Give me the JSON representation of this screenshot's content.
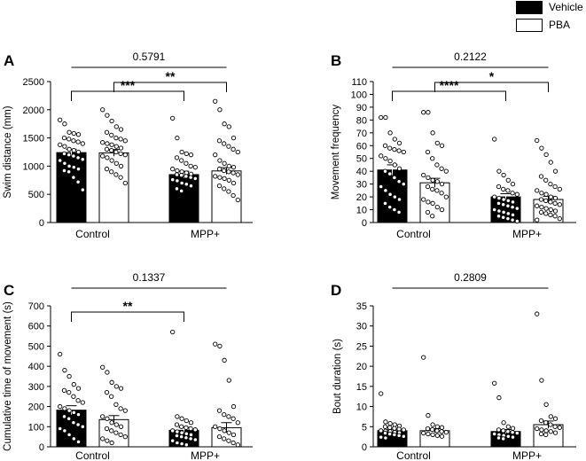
{
  "legend": {
    "items": [
      {
        "label": "Vehicle",
        "color": "#000000"
      },
      {
        "label": "PBA",
        "color": "#ffffff"
      }
    ]
  },
  "chart_data": [
    {
      "panel": "A",
      "type": "bar",
      "categories": [
        "Control",
        "MPP+"
      ],
      "series": [
        {
          "name": "Vehicle",
          "values": [
            1240,
            850
          ],
          "sem": [
            60,
            60
          ],
          "points": [
            [
              1820,
              1750,
              1600,
              1580,
              1560,
              1500,
              1480,
              1450,
              1430,
              1400,
              1380,
              1350,
              1300,
              1280,
              1250,
              1220,
              1200,
              1180,
              1150,
              1120,
              1100,
              1050,
              1000,
              980,
              950,
              920,
              900,
              800,
              720,
              580
            ],
            [
              1850,
              1500,
              1250,
              1220,
              1200,
              1150,
              1100,
              1050,
              1000,
              980,
              950,
              920,
              900,
              880,
              860,
              850,
              840,
              820,
              800,
              780,
              760,
              740,
              700,
              680,
              650,
              600,
              560
            ]
          ]
        },
        {
          "name": "PBA",
          "values": [
            1235,
            915
          ],
          "sem": [
            60,
            60
          ],
          "points": [
            [
              2000,
              1900,
              1800,
              1700,
              1650,
              1600,
              1550,
              1500,
              1480,
              1450,
              1420,
              1400,
              1380,
              1350,
              1320,
              1300,
              1280,
              1250,
              1220,
              1200,
              1180,
              1150,
              1100,
              1050,
              1000,
              950,
              900,
              850,
              800,
              700
            ],
            [
              2150,
              2000,
              1750,
              1700,
              1500,
              1450,
              1400,
              1350,
              1300,
              1250,
              1200,
              1100,
              1050,
              1000,
              980,
              950,
              920,
              900,
              880,
              850,
              820,
              800,
              780,
              750,
              700,
              650,
              600,
              550,
              480,
              400
            ]
          ]
        }
      ],
      "ylabel": "Swim distance (mm)",
      "ylim": [
        0,
        2500
      ],
      "yticks": [
        "0",
        "500",
        "1000",
        "1500",
        "2000",
        "2500"
      ],
      "annotations": [
        {
          "label": "0.5791",
          "from": "Control-Vehicle",
          "to": "MPP+-PBA",
          "style": "line"
        },
        {
          "label": "***",
          "from": "Control-Vehicle",
          "to": "MPP+-Vehicle",
          "style": "bracket"
        },
        {
          "label": "**",
          "from": "Control-PBA",
          "to": "MPP+-PBA",
          "style": "bracket"
        }
      ]
    },
    {
      "panel": "B",
      "type": "bar",
      "categories": [
        "Control",
        "MPP+"
      ],
      "series": [
        {
          "name": "Vehicle",
          "values": [
            41,
            20
          ],
          "sem": [
            4,
            2.5
          ],
          "points": [
            [
              82,
              82,
              70,
              65,
              62,
              60,
              58,
              57,
              56,
              55,
              52,
              50,
              48,
              45,
              42,
              40,
              38,
              35,
              32,
              30,
              28,
              25,
              22,
              20,
              18,
              15,
              12,
              10,
              8
            ],
            [
              65,
              40,
              37,
              33,
              30,
              28,
              26,
              25,
              23,
              22,
              20,
              19,
              18,
              17,
              16,
              15,
              14,
              13,
              12,
              11,
              10,
              9,
              8,
              7,
              6,
              5,
              4,
              3,
              2,
              1
            ]
          ]
        },
        {
          "name": "PBA",
          "values": [
            31,
            18
          ],
          "sem": [
            3.5,
            2.5
          ],
          "points": [
            [
              86,
              86,
              70,
              62,
              60,
              55,
              50,
              45,
              42,
              40,
              37,
              35,
              33,
              32,
              30,
              28,
              26,
              25,
              23,
              20,
              18,
              16,
              15,
              12,
              10,
              8,
              5
            ],
            [
              64,
              58,
              53,
              47,
              40,
              36,
              33,
              30,
              28,
              26,
              25,
              23,
              22,
              20,
              19,
              18,
              17,
              16,
              15,
              14,
              13,
              12,
              11,
              10,
              9,
              8,
              7,
              6,
              5,
              3,
              2
            ]
          ]
        }
      ],
      "ylabel": "Movement frequency",
      "ylim": [
        0,
        110
      ],
      "yticks": [
        "0",
        "10",
        "20",
        "30",
        "40",
        "50",
        "60",
        "70",
        "80",
        "90",
        "100",
        "110"
      ],
      "annotations": [
        {
          "label": "0.2122",
          "from": "Control-Vehicle",
          "to": "MPP+-PBA",
          "style": "line"
        },
        {
          "label": "****",
          "from": "Control-Vehicle",
          "to": "MPP+-Vehicle",
          "style": "bracket"
        },
        {
          "label": "*",
          "from": "Control-PBA",
          "to": "MPP+-PBA",
          "style": "bracket"
        }
      ]
    },
    {
      "panel": "C",
      "type": "bar",
      "categories": [
        "Control",
        "MPP+"
      ],
      "series": [
        {
          "name": "Vehicle",
          "values": [
            182,
            82
          ],
          "sem": [
            22,
            15
          ],
          "points": [
            [
              460,
              380,
              350,
              310,
              290,
              280,
              270,
              250,
              230,
              220,
              200,
              190,
              180,
              170,
              160,
              150,
              140,
              120,
              110,
              100,
              90,
              80,
              60,
              40,
              25
            ],
            [
              570,
              150,
              140,
              130,
              120,
              110,
              100,
              95,
              90,
              85,
              80,
              75,
              70,
              65,
              60,
              55,
              50,
              45,
              40,
              35,
              30,
              20,
              15,
              10
            ]
          ]
        },
        {
          "name": "PBA",
          "values": [
            135,
            95
          ],
          "sem": [
            20,
            25
          ],
          "points": [
            [
              395,
              370,
              320,
              300,
              290,
              270,
              250,
              210,
              190,
              180,
              150,
              140,
              120,
              110,
              100,
              90,
              80,
              70,
              60,
              50,
              40,
              30,
              20
            ],
            [
              510,
              500,
              430,
              330,
              200,
              180,
              160,
              150,
              140,
              120,
              100,
              90,
              80,
              70,
              60,
              50,
              40,
              30,
              20,
              10
            ]
          ]
        }
      ],
      "ylabel": "Cumulative time of movement (s)",
      "ylim": [
        0,
        700
      ],
      "yticks": [
        "0",
        "100",
        "200",
        "300",
        "400",
        "500",
        "600",
        "700"
      ],
      "annotations": [
        {
          "label": "0.1337",
          "from": "Control-Vehicle",
          "to": "MPP+-PBA",
          "style": "line"
        },
        {
          "label": "**",
          "from": "Control-Vehicle",
          "to": "MPP+-Vehicle",
          "style": "bracket"
        }
      ]
    },
    {
      "panel": "D",
      "type": "bar",
      "categories": [
        "Control",
        "MPP+"
      ],
      "series": [
        {
          "name": "Vehicle",
          "values": [
            4,
            3.8
          ],
          "sem": [
            0.35,
            0.5
          ],
          "points": [
            [
              13.2,
              6.2,
              5.8,
              5.5,
              5.2,
              5,
              4.8,
              4.6,
              4.4,
              4.2,
              4,
              3.9,
              3.8,
              3.6,
              3.5,
              3.4,
              3.2,
              3,
              2.8,
              2.6,
              2.4,
              2.2
            ],
            [
              15.8,
              12.2,
              6,
              5,
              4.6,
              4.2,
              4,
              3.8,
              3.6,
              3.4,
              3.2,
              3,
              2.8,
              2.6,
              2.4,
              2.2,
              2
            ]
          ]
        },
        {
          "name": "PBA",
          "values": [
            4,
            5.5
          ],
          "sem": [
            0.5,
            0.9
          ],
          "points": [
            [
              22.2,
              7.8,
              5.5,
              5,
              4.8,
              4.5,
              4.3,
              4,
              3.8,
              3.6,
              3.4,
              3.2,
              3,
              2.8,
              2.6
            ],
            [
              33,
              16.5,
              10.5,
              7.5,
              7,
              6.5,
              6,
              5.5,
              5,
              4.8,
              4.5,
              4.2,
              4,
              3.8,
              3.5,
              3.2,
              3
            ]
          ]
        }
      ],
      "ylabel": "Bout duration (s)",
      "ylim": [
        0,
        35
      ],
      "yticks": [
        "0",
        "5",
        "10",
        "15",
        "20",
        "25",
        "30",
        "35"
      ],
      "annotations": [
        {
          "label": "0.2809",
          "from": "Control-Vehicle",
          "to": "MPP+-PBA",
          "style": "line"
        }
      ]
    }
  ]
}
